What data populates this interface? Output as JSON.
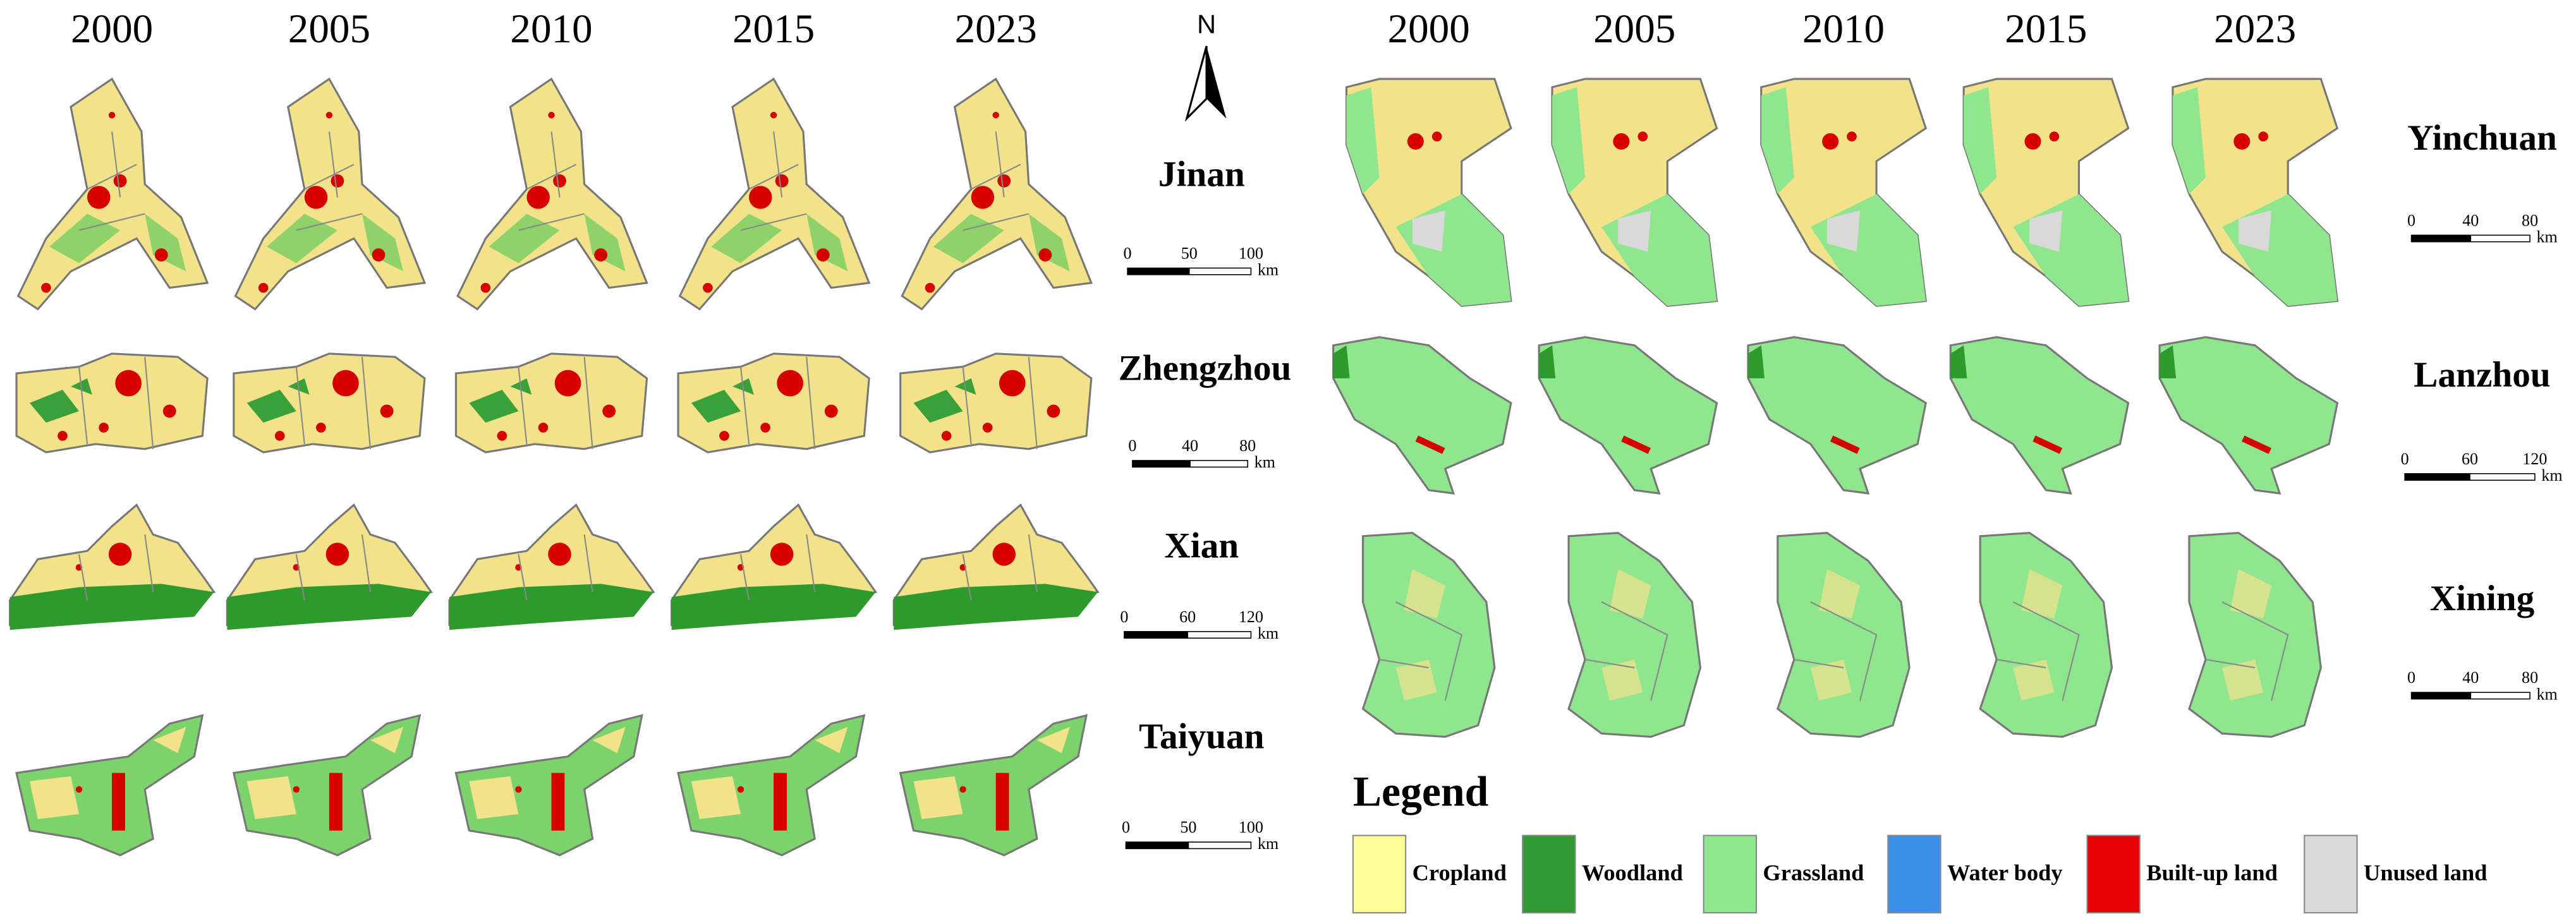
{
  "north": "N",
  "left_panel": {
    "years": [
      "2000",
      "2005",
      "2010",
      "2015",
      "2023"
    ],
    "cities": [
      {
        "name": "Jinan",
        "scale": [
          0,
          50,
          100
        ],
        "unit": "km"
      },
      {
        "name": "Zhengzhou",
        "scale": [
          0,
          40,
          80
        ],
        "unit": "km"
      },
      {
        "name": "Xian",
        "scale": [
          0,
          60,
          120
        ],
        "unit": "km"
      },
      {
        "name": "Taiyuan",
        "scale": [
          0,
          50,
          100
        ],
        "unit": "km"
      }
    ]
  },
  "right_panel": {
    "years": [
      "2000",
      "2005",
      "2010",
      "2015",
      "2023"
    ],
    "cities": [
      {
        "name": "Yinchuan",
        "scale": [
          0,
          40,
          80
        ],
        "unit": "km"
      },
      {
        "name": "Lanzhou",
        "scale": [
          0,
          60,
          120
        ],
        "unit": "km"
      },
      {
        "name": "Xining",
        "scale": [
          0,
          40,
          80
        ],
        "unit": "km"
      }
    ]
  },
  "legend": {
    "title": "Legend",
    "items": [
      {
        "label": "Cropland",
        "color": "#ffff99"
      },
      {
        "label": "Woodland",
        "color": "#339933"
      },
      {
        "label": "Grassland",
        "color": "#8fe68f"
      },
      {
        "label": "Water body",
        "color": "#3b8fe6"
      },
      {
        "label": "Built-up land",
        "color": "#e60000"
      },
      {
        "label": "Unused land",
        "color": "#d9d9d9"
      }
    ]
  }
}
